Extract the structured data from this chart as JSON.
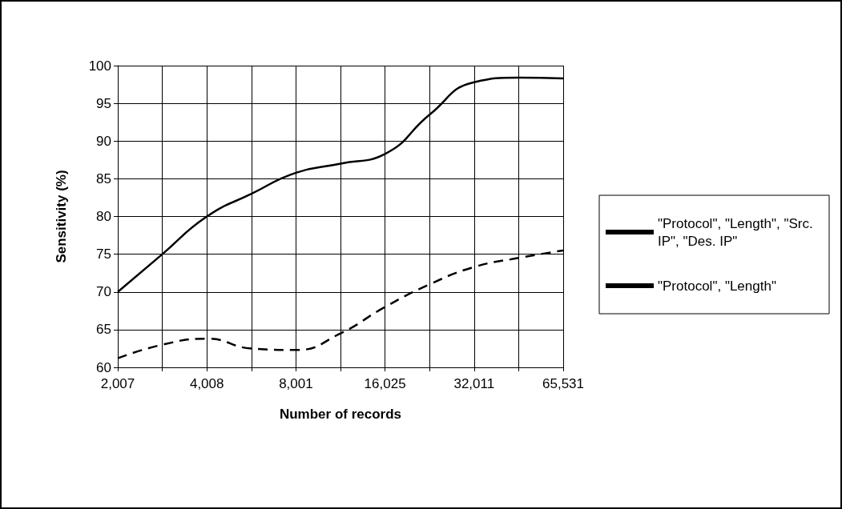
{
  "chart_data": {
    "type": "line",
    "xlabel": "Number of records",
    "ylabel": "Sensitivity (%)",
    "categories": [
      "2,007",
      null,
      "4,008",
      null,
      "8,001",
      null,
      "16,025",
      null,
      "32,011",
      null,
      "65,531"
    ],
    "series": [
      {
        "name": "\"Protocol\", \"Length\", \"Src. IP\", \"Des. IP\"",
        "color": "#000000",
        "line_style": "solid",
        "values": [
          70,
          75,
          80,
          83,
          85.8,
          87,
          88.3,
          93.5,
          97.8,
          98.4,
          98.3
        ]
      },
      {
        "name": "\"Protocol\", \"Length\"",
        "color": "#000000",
        "line_style": "dashed",
        "values": [
          61.2,
          63,
          63.8,
          62.5,
          62.3,
          64.5,
          68,
          71,
          73.3,
          74.5,
          75.5
        ]
      }
    ],
    "ylim": [
      60,
      100
    ],
    "yticks": [
      60,
      65,
      70,
      75,
      80,
      85,
      90,
      95,
      100
    ],
    "grid": true,
    "legend": "right",
    "marker": "none"
  }
}
